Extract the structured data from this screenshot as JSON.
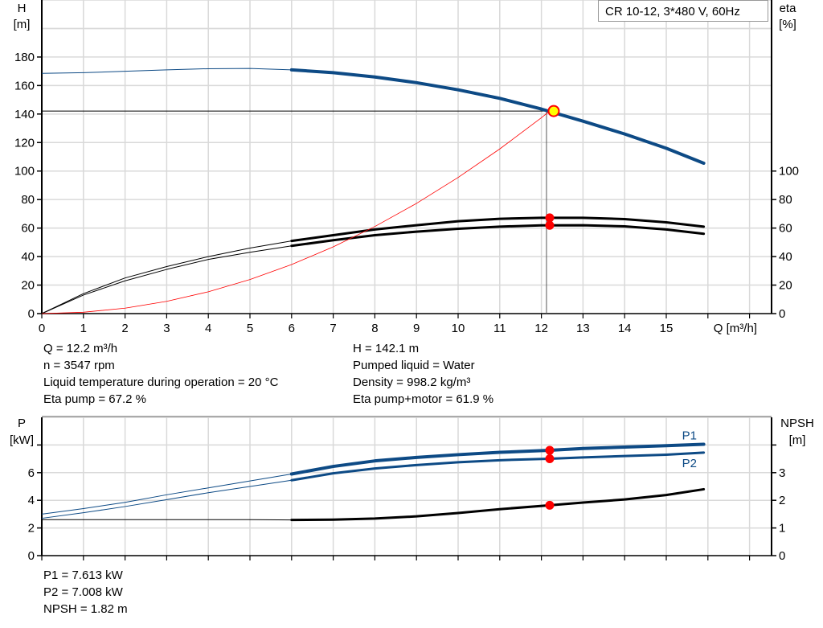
{
  "title": "CR 10-12, 3*480 V, 60Hz",
  "colors": {
    "head": "#0d4a85",
    "power": "#0d4a85",
    "eta": "#000000",
    "npsh": "#000000",
    "system": "#ff0000",
    "point_fill": "#ffff00",
    "point_stroke": "#ff0000",
    "grid": "#d9d9d9"
  },
  "info_top": {
    "left": [
      "Q = 12.2 m³/h",
      "n = 3547 rpm",
      "Liquid temperature during operation = 20 °C",
      "Eta pump = 67.2 %"
    ],
    "right": [
      "H = 142.1 m",
      "Pumped liquid = Water",
      "Density = 998.2 kg/m³",
      "Eta pump+motor = 61.9 %"
    ]
  },
  "info_bottom": [
    "P1 = 7.613 kW",
    "P2 = 7.008 kW",
    "NPSH = 1.82 m"
  ],
  "chart_data": [
    {
      "type": "line",
      "xlabel": "Q [m³/h]",
      "ylabel": "H\n[m]",
      "y2label": "eta\n[%]",
      "xlim": [
        0,
        17.5
      ],
      "ylim": [
        0,
        220
      ],
      "y2lim": [
        0,
        220
      ],
      "xticks": [
        0,
        1,
        2,
        3,
        4,
        5,
        6,
        7,
        8,
        9,
        10,
        11,
        12,
        13,
        14,
        15
      ],
      "yticks": [
        0,
        20,
        40,
        60,
        80,
        100,
        120,
        140,
        160,
        180
      ],
      "y2ticks": [
        0,
        20,
        40,
        60,
        80,
        100
      ],
      "grid": true,
      "x": [
        0,
        1,
        2,
        3,
        4,
        5,
        6,
        7,
        8,
        9,
        10,
        11,
        12,
        13,
        14,
        15,
        15.9
      ],
      "series": [
        {
          "key": "H",
          "axis": "left",
          "values": [
            168.5,
            169,
            170,
            171,
            171.8,
            172,
            171,
            169,
            166,
            162,
            157,
            151,
            143.5,
            135,
            126,
            116,
            105.5
          ],
          "thick_from": 6
        },
        {
          "key": "eta_pump",
          "axis": "right",
          "values": [
            0,
            14,
            25,
            33,
            40,
            46,
            51,
            55,
            59,
            62,
            64.8,
            66.5,
            67.2,
            67.2,
            66.3,
            64,
            61
          ],
          "thick_from": 6
        },
        {
          "key": "eta_pump_motor",
          "axis": "right",
          "values": [
            0,
            13,
            23,
            31,
            38,
            43,
            47.5,
            51.5,
            55,
            57.5,
            59.5,
            61,
            61.9,
            62,
            61.2,
            59,
            56
          ],
          "thick_from": 6
        },
        {
          "key": "system",
          "axis": "left",
          "x": [
            0,
            1,
            2,
            3,
            4,
            5,
            6,
            7,
            8,
            9,
            10,
            11,
            12,
            12.2
          ],
          "values": [
            0,
            0.95,
            3.8,
            8.6,
            15.3,
            23.9,
            34.4,
            46.8,
            61.1,
            77.3,
            95.5,
            115.5,
            137.4,
            142.1
          ]
        }
      ],
      "operating_point": {
        "Q": 12.2,
        "H": 142.1,
        "eta_pump": 67.2,
        "eta_pump_motor": 61.9
      }
    },
    {
      "type": "line",
      "ylabel": "P\n[kW]",
      "y2label": "NPSH\n[m]",
      "xlim": [
        0,
        17.5
      ],
      "ylim": [
        0,
        10
      ],
      "y2lim": [
        0,
        5
      ],
      "yticks": [
        0,
        2,
        4,
        6,
        8
      ],
      "yticklabels": [
        "0",
        "2",
        "4",
        "6",
        ""
      ],
      "y2ticks": [
        0,
        1,
        2,
        3,
        4
      ],
      "y2ticklabels": [
        "0",
        "1",
        "2",
        "3",
        ""
      ],
      "grid": true,
      "x": [
        0,
        1,
        2,
        3,
        4,
        5,
        6,
        7,
        8,
        9,
        10,
        11,
        12.2,
        13,
        14,
        15,
        15.9
      ],
      "series": [
        {
          "key": "P1",
          "name": "P1",
          "axis": "left",
          "values": [
            3.0,
            3.4,
            3.85,
            4.4,
            4.9,
            5.4,
            5.9,
            6.45,
            6.85,
            7.1,
            7.3,
            7.47,
            7.613,
            7.75,
            7.85,
            7.95,
            8.05
          ],
          "thick_from": 6
        },
        {
          "key": "P2",
          "name": "P2",
          "axis": "left",
          "values": [
            2.7,
            3.1,
            3.55,
            4.05,
            4.55,
            5.0,
            5.45,
            5.95,
            6.3,
            6.55,
            6.75,
            6.9,
            7.008,
            7.1,
            7.2,
            7.3,
            7.45
          ],
          "thick_from": 6
        },
        {
          "key": "NPSH",
          "axis": "right",
          "values": [
            1.3,
            1.3,
            1.3,
            1.3,
            1.3,
            1.3,
            1.29,
            1.3,
            1.34,
            1.42,
            1.54,
            1.68,
            1.82,
            1.92,
            2.03,
            2.19,
            2.4
          ],
          "thick_from": 6
        }
      ],
      "operating_point": {
        "Q": 12.2,
        "P1": 7.613,
        "P2": 7.008,
        "NPSH": 1.82
      }
    }
  ]
}
